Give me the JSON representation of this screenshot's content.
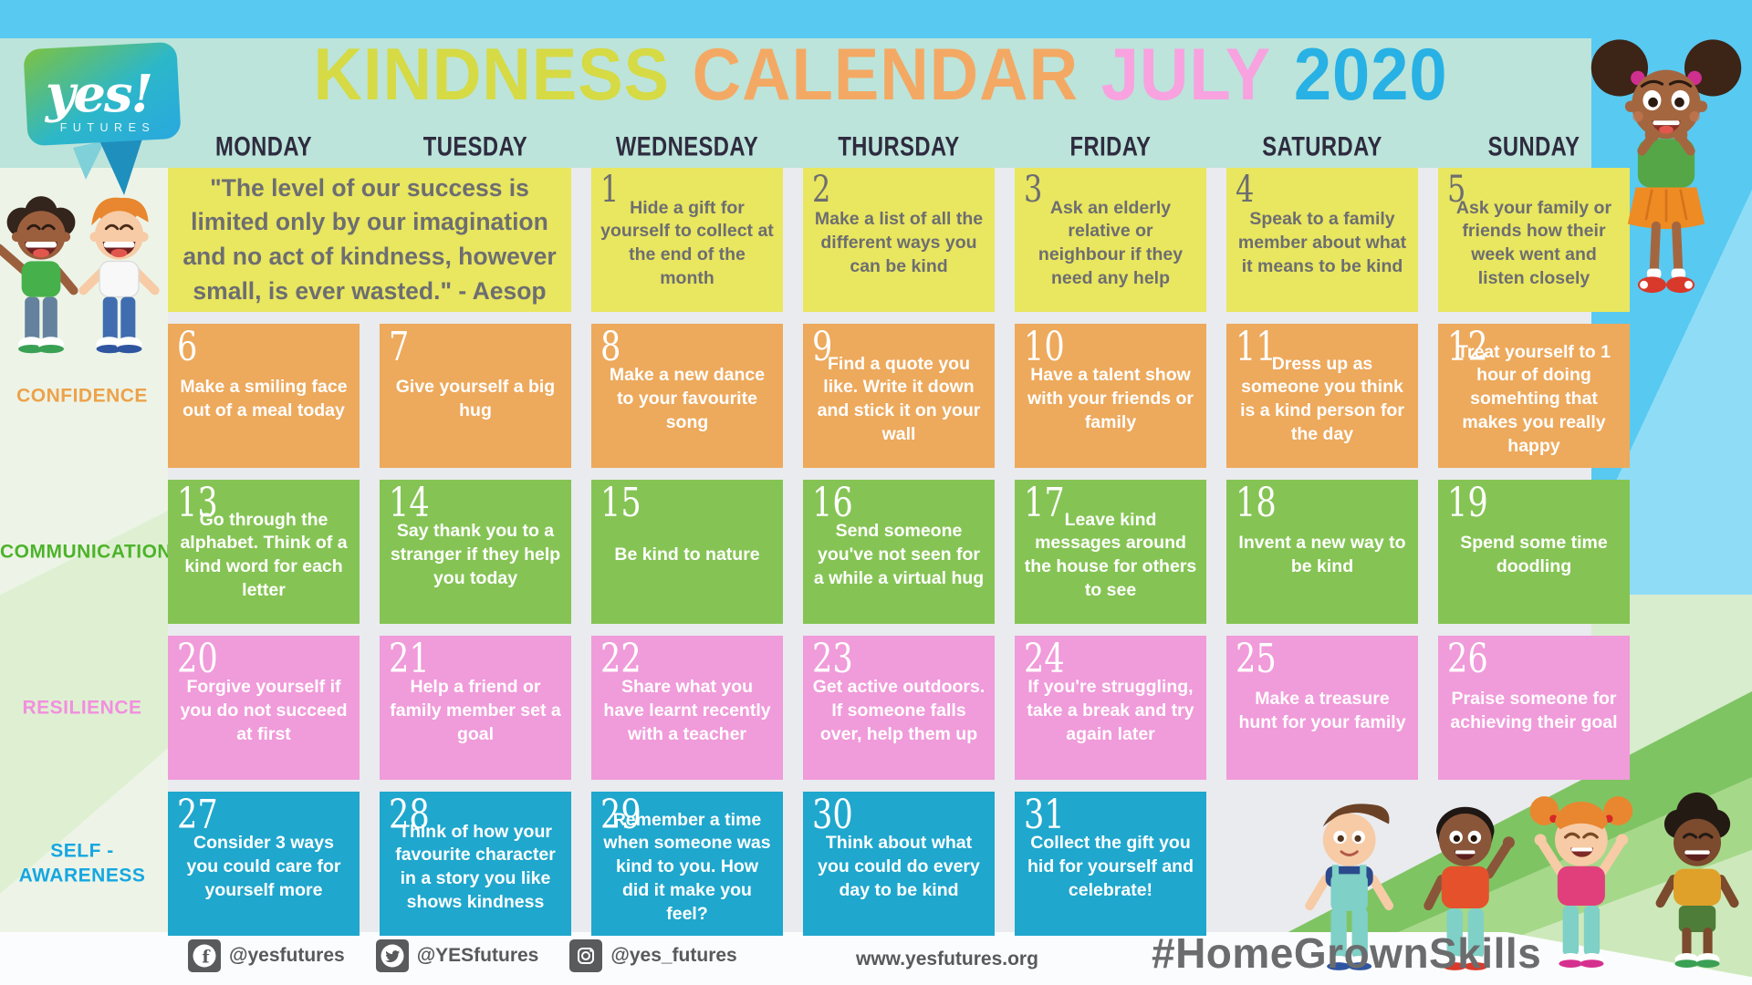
{
  "header": {
    "title_parts": [
      {
        "text": "KINDNESS",
        "color": "#d6da44"
      },
      {
        "text": "CALENDAR",
        "color": "#f3a964"
      },
      {
        "text": "JULY",
        "color": "#f8a2e0"
      },
      {
        "text": "2020",
        "color": "#28b1e4"
      }
    ],
    "logo": {
      "line1": "yes!",
      "line2": "FUTURES"
    }
  },
  "weekdays": [
    "MONDAY",
    "TUESDAY",
    "WEDNESDAY",
    "THURSDAY",
    "FRIDAY",
    "SATURDAY",
    "SUNDAY"
  ],
  "quote": "\"The level of our success is limited only by our imagination and no act of kindness, however small, is ever wasted.\" - Aesop",
  "row_labels": [
    {
      "label": "CONFIDENCE",
      "color": "#eda24b"
    },
    {
      "label": "COMMUNICATION",
      "color": "#4db32a"
    },
    {
      "label": "RESILIENCE",
      "color": "#f18fdf"
    },
    {
      "label": "SELF - AWARENESS",
      "color": "#16a7e0"
    }
  ],
  "days": [
    {
      "num": 1,
      "text": "Hide a gift for yourself to collect at the end of the month"
    },
    {
      "num": 2,
      "text": "Make a list of all the different ways you can be kind"
    },
    {
      "num": 3,
      "text": "Ask an elderly relative or neighbour if they need any help"
    },
    {
      "num": 4,
      "text": "Speak to a family member about what it means to be kind"
    },
    {
      "num": 5,
      "text": "Ask your family or friends how their week went and listen closely"
    },
    {
      "num": 6,
      "text": "Make a smiling face out of a meal today"
    },
    {
      "num": 7,
      "text": "Give yourself a big hug"
    },
    {
      "num": 8,
      "text": "Make a new dance to your favourite song"
    },
    {
      "num": 9,
      "text": "Find a quote you like. Write it down and stick it on your wall"
    },
    {
      "num": 10,
      "text": "Have a talent show with your friends or family"
    },
    {
      "num": 11,
      "text": "Dress up as someone you think is a kind person for the day"
    },
    {
      "num": 12,
      "text": "Treat yourself to 1 hour of doing somehting that makes you really happy"
    },
    {
      "num": 13,
      "text": "Go through the alphabet. Think of a kind word for each letter"
    },
    {
      "num": 14,
      "text": "Say thank you to a stranger if they help you today"
    },
    {
      "num": 15,
      "text": "Be kind to nature"
    },
    {
      "num": 16,
      "text": "Send someone you've not seen for a while a virtual hug"
    },
    {
      "num": 17,
      "text": "Leave kind messages around the house for others to see"
    },
    {
      "num": 18,
      "text": "Invent a new way to be kind"
    },
    {
      "num": 19,
      "text": "Spend some time doodling"
    },
    {
      "num": 20,
      "text": "Forgive yourself if you do not succeed at first"
    },
    {
      "num": 21,
      "text": "Help a friend or family member set a goal"
    },
    {
      "num": 22,
      "text": "Share what you have learnt recently with a teacher"
    },
    {
      "num": 23,
      "text": "Get active outdoors. If someone falls over, help them up"
    },
    {
      "num": 24,
      "text": "If you're struggling, take a break and try again later"
    },
    {
      "num": 25,
      "text": "Make a treasure hunt for your family"
    },
    {
      "num": 26,
      "text": "Praise someone for achieving their goal"
    },
    {
      "num": 27,
      "text": "Consider 3 ways you could care for yourself more"
    },
    {
      "num": 28,
      "text": "Think of how your favourite character in a story you like shows kindness"
    },
    {
      "num": 29,
      "text": "Remember a time when someone was kind to you. How did it make you feel?"
    },
    {
      "num": 30,
      "text": "Think about what you could do every day to be kind"
    },
    {
      "num": 31,
      "text": "Collect the gift you hid for yourself and celebrate!"
    }
  ],
  "footer": {
    "social": [
      {
        "icon": "facebook-icon",
        "handle": "@yesfutures"
      },
      {
        "icon": "twitter-icon",
        "handle": "@YESfutures"
      },
      {
        "icon": "instagram-icon",
        "handle": "@yes_futures"
      }
    ],
    "website": "www.yesfutures.org",
    "hashtag": "#HomeGrownSkills"
  },
  "colors": {
    "row_yellow": "#e9e65f",
    "row_orange": "#edaa5b",
    "row_green": "#85c454",
    "row_pink": "#f09bda",
    "row_blue": "#1fa7cd",
    "cell_text_gray": "#6d6e71",
    "weekday_navy": "#2e2b3f",
    "sky": "#58c9f1",
    "mint": "#bce4da"
  }
}
